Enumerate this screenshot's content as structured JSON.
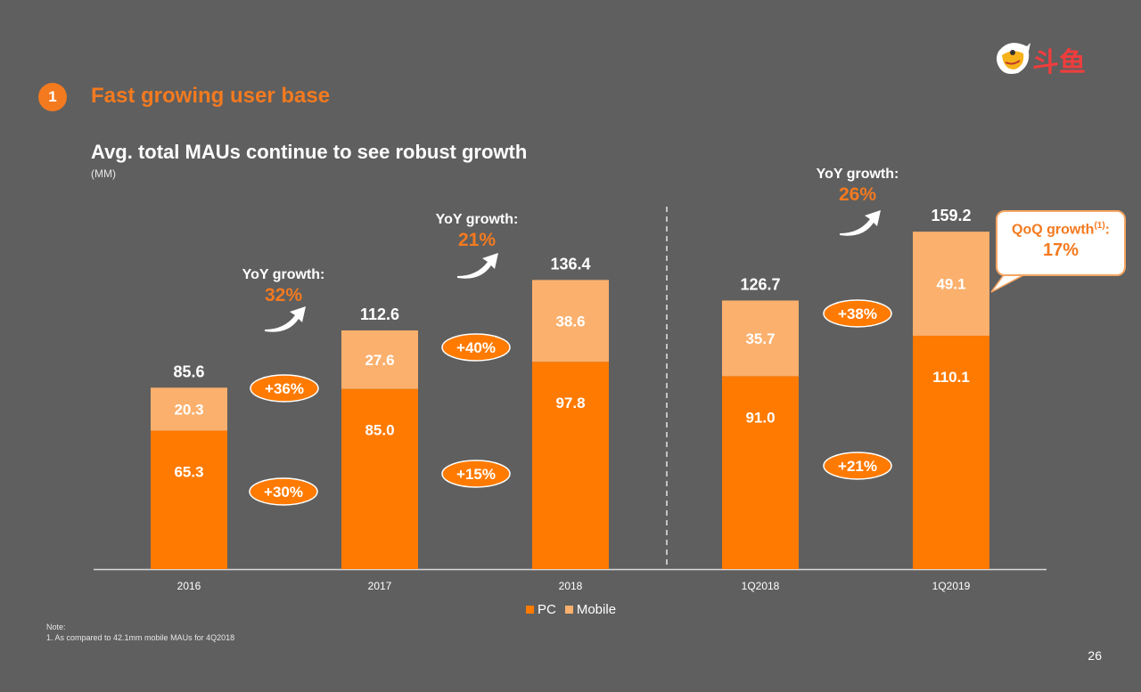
{
  "section": {
    "number": "1",
    "title": "Fast growing user base"
  },
  "chart_title": "Avg. total MAUs continue to see robust growth",
  "chart_unit": "(MM)",
  "logo_text": "斗鱼",
  "page_number": "26",
  "note": {
    "label": "Note:",
    "text": "1. As compared to 42.1mm mobile MAUs for 4Q2018"
  },
  "colors": {
    "background": "#5f5f5f",
    "pc": "#ff7a00",
    "mobile": "#fbb06d",
    "accent": "#f47a1f"
  },
  "chart_data": {
    "type": "bar",
    "stacked": true,
    "categories": [
      "2016",
      "2017",
      "2018",
      "1Q2018",
      "1Q2019"
    ],
    "series": [
      {
        "name": "PC",
        "values": [
          65.3,
          85.0,
          97.8,
          91.0,
          110.1
        ]
      },
      {
        "name": "Mobile",
        "values": [
          20.3,
          27.6,
          38.6,
          35.7,
          49.1
        ]
      }
    ],
    "totals": [
      "85.6",
      "112.6",
      "136.4",
      "126.7",
      "159.2"
    ],
    "pc_labels": [
      "65.3",
      "85.0",
      "97.8",
      "91.0",
      "110.1"
    ],
    "mobile_labels": [
      "20.3",
      "27.6",
      "38.6",
      "35.7",
      "49.1"
    ],
    "legend": [
      "PC",
      "Mobile"
    ],
    "legend_position": "bottom",
    "grid": false,
    "ylim": [
      0,
      170
    ],
    "annotations": {
      "yoy": [
        {
          "label": "YoY growth:",
          "value": "32%"
        },
        {
          "label": "YoY growth:",
          "value": "21%"
        },
        {
          "label": "YoY growth:",
          "value": "26%"
        }
      ],
      "mobile_growth": [
        "+36%",
        "+40%",
        "+38%"
      ],
      "pc_growth": [
        "+30%",
        "+15%",
        "+21%"
      ],
      "qoq": {
        "label": "QoQ growth",
        "superscript": "(1)",
        "suffix": ":",
        "value": "17%"
      }
    }
  }
}
